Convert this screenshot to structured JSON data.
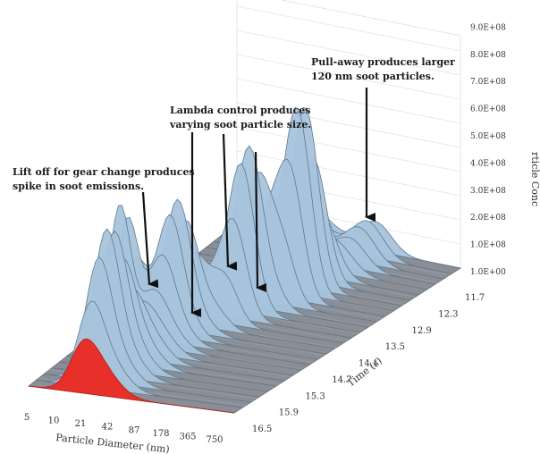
{
  "chart_data": {
    "type": "area",
    "style": "3d-waterfall",
    "title": "",
    "xlabel": "Particle Diameter (nm)",
    "ylabel": "Time (s)",
    "zlabel_visible": "rticle Conc",
    "x_ticks": [
      "5",
      "10",
      "21",
      "42",
      "87",
      "178",
      "365",
      "750"
    ],
    "time_ticks": [
      "11.7",
      "12.3",
      "12.9",
      "13.5",
      "14.1",
      "14.7",
      "15.3",
      "15.9",
      "16.5"
    ],
    "z_ticks": [
      "1.0E+00",
      "1.0E+08",
      "2.0E+08",
      "3.0E+08",
      "4.0E+08",
      "5.0E+08",
      "6.0E+08",
      "7.0E+08",
      "8.0E+08",
      "9.0E+08"
    ],
    "zlim": [
      0,
      900000000
    ],
    "highlight_color": "#e8302a",
    "surface_color": "#a8c4dc",
    "annotations": [
      {
        "text": "Lift off for gear change produces spike in soot emissions.",
        "lines": [
          "Lift off for gear change produces",
          "spike in soot emissions."
        ]
      },
      {
        "text": "Lambda control produces varying soot particle size.",
        "lines": [
          "Lambda control produces",
          "varying soot particle size."
        ]
      },
      {
        "text": "Pull-away produces larger 120 nm soot particles.",
        "lines": [
          "Pull-away produces larger",
          "120 nm soot particles."
        ]
      }
    ]
  }
}
